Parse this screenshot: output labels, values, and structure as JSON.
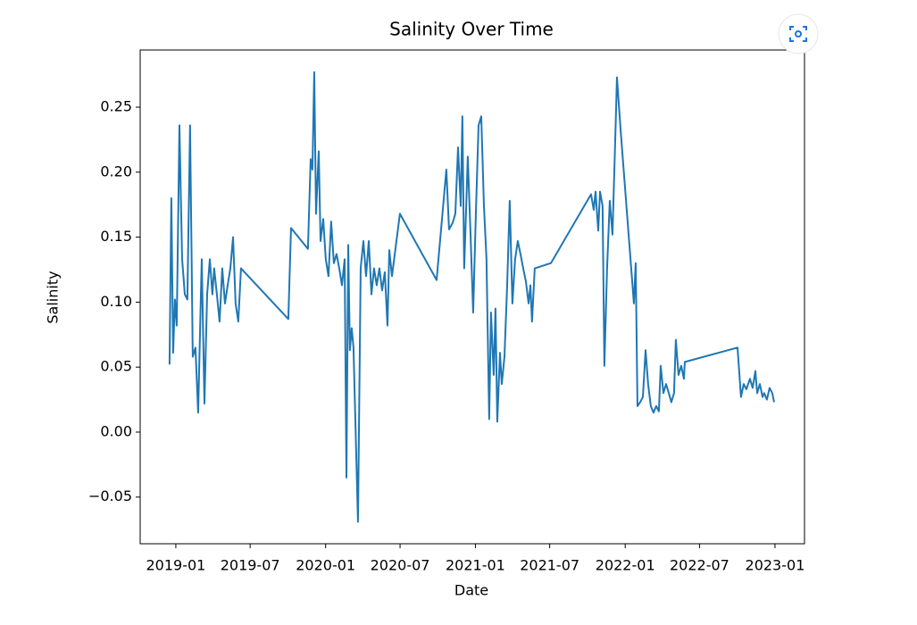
{
  "chart_data": {
    "type": "line",
    "title": "Salinity Over Time",
    "x_label": "Date",
    "y_label": "Salinity",
    "color": "#1f77b4",
    "grid": false,
    "x": [
      2018.958,
      2018.97,
      2018.982,
      2018.994,
      2019.006,
      2019.024,
      2019.042,
      2019.06,
      2019.077,
      2019.095,
      2019.113,
      2019.131,
      2019.149,
      2019.173,
      2019.191,
      2019.209,
      2019.227,
      2019.244,
      2019.256,
      2019.274,
      2019.292,
      2019.31,
      2019.328,
      2019.346,
      2019.364,
      2019.382,
      2019.399,
      2019.417,
      2019.435,
      2019.751,
      2019.769,
      2019.882,
      2019.9,
      2019.912,
      2019.924,
      2019.936,
      2019.954,
      2019.966,
      2019.984,
      2020.001,
      2020.019,
      2020.037,
      2020.055,
      2020.073,
      2020.091,
      2020.109,
      2020.127,
      2020.139,
      2020.151,
      2020.162,
      2020.174,
      2020.186,
      2020.216,
      2020.234,
      2020.252,
      2020.27,
      2020.288,
      2020.306,
      2020.323,
      2020.341,
      2020.359,
      2020.377,
      2020.395,
      2020.413,
      2020.425,
      2020.443,
      2020.496,
      2020.741,
      2020.806,
      2020.824,
      2020.848,
      2020.866,
      2020.884,
      2020.902,
      2020.913,
      2020.925,
      2020.937,
      2020.949,
      2020.967,
      2020.985,
      2021.003,
      2021.021,
      2021.039,
      2021.057,
      2021.074,
      2021.092,
      2021.104,
      2021.122,
      2021.134,
      2021.146,
      2021.164,
      2021.176,
      2021.194,
      2021.212,
      2021.229,
      2021.247,
      2021.265,
      2021.283,
      2021.301,
      2021.319,
      2021.337,
      2021.355,
      2021.367,
      2021.378,
      2021.396,
      2021.504,
      2021.772,
      2021.79,
      2021.802,
      2021.82,
      2021.832,
      2021.849,
      2021.861,
      2021.879,
      2021.897,
      2021.915,
      2021.933,
      2021.945,
      2021.969,
      2022.058,
      2022.07,
      2022.082,
      2022.1,
      2022.118,
      2022.136,
      2022.153,
      2022.171,
      2022.189,
      2022.207,
      2022.225,
      2022.237,
      2022.255,
      2022.273,
      2022.291,
      2022.308,
      2022.326,
      2022.338,
      2022.356,
      2022.374,
      2022.392,
      2022.398,
      2022.75,
      2022.773,
      2022.791,
      2022.809,
      2022.821,
      2022.833,
      2022.851,
      2022.869,
      2022.881,
      2022.899,
      2022.917,
      2022.928,
      2022.946,
      2022.964,
      2022.982,
      2022.994
    ],
    "values": [
      0.052,
      0.18,
      0.061,
      0.102,
      0.082,
      0.236,
      0.133,
      0.106,
      0.102,
      0.236,
      0.058,
      0.065,
      0.015,
      0.133,
      0.022,
      0.106,
      0.133,
      0.106,
      0.126,
      0.106,
      0.085,
      0.126,
      0.099,
      0.113,
      0.126,
      0.15,
      0.099,
      0.085,
      0.126,
      0.087,
      0.157,
      0.141,
      0.21,
      0.202,
      0.277,
      0.168,
      0.216,
      0.147,
      0.164,
      0.133,
      0.12,
      0.162,
      0.13,
      0.137,
      0.126,
      0.113,
      0.133,
      -0.035,
      0.144,
      0.063,
      0.08,
      0.065,
      -0.069,
      0.126,
      0.147,
      0.12,
      0.147,
      0.106,
      0.126,
      0.113,
      0.126,
      0.109,
      0.123,
      0.082,
      0.14,
      0.12,
      0.168,
      0.117,
      0.202,
      0.156,
      0.161,
      0.168,
      0.219,
      0.174,
      0.243,
      0.126,
      0.168,
      0.212,
      0.154,
      0.092,
      0.168,
      0.236,
      0.243,
      0.174,
      0.133,
      0.01,
      0.092,
      0.044,
      0.095,
      0.008,
      0.061,
      0.037,
      0.058,
      0.113,
      0.178,
      0.099,
      0.133,
      0.147,
      0.137,
      0.126,
      0.116,
      0.099,
      0.113,
      0.085,
      0.126,
      0.13,
      0.183,
      0.171,
      0.185,
      0.155,
      0.185,
      0.174,
      0.051,
      0.126,
      0.178,
      0.152,
      0.223,
      0.273,
      0.233,
      0.099,
      0.13,
      0.02,
      0.023,
      0.027,
      0.063,
      0.037,
      0.02,
      0.015,
      0.02,
      0.016,
      0.051,
      0.03,
      0.037,
      0.03,
      0.023,
      0.03,
      0.071,
      0.044,
      0.051,
      0.041,
      0.054,
      0.065,
      0.027,
      0.037,
      0.033,
      0.037,
      0.041,
      0.034,
      0.047,
      0.03,
      0.037,
      0.027,
      0.03,
      0.025,
      0.034,
      0.03,
      0.023
    ],
    "xlim": [
      2018.762,
      2023.197
    ],
    "xticks": [
      {
        "value": 2019.0,
        "label": "2019-01"
      },
      {
        "value": 2019.496,
        "label": "2019-07"
      },
      {
        "value": 2020.0,
        "label": "2020-01"
      },
      {
        "value": 2020.497,
        "label": "2020-07"
      },
      {
        "value": 2021.0,
        "label": "2021-01"
      },
      {
        "value": 2021.496,
        "label": "2021-07"
      },
      {
        "value": 2022.0,
        "label": "2022-01"
      },
      {
        "value": 2022.496,
        "label": "2022-07"
      },
      {
        "value": 2023.0,
        "label": "2023-01"
      }
    ],
    "ylim": [
      -0.0859,
      0.294
    ],
    "yticks": [
      {
        "value": -0.05,
        "label": "−0.05"
      },
      {
        "value": 0,
        "label": "0.00"
      },
      0.05,
      {
        "value": 0.1,
        "label": "0.10"
      },
      0.15,
      {
        "value": 0.2,
        "label": "0.20"
      },
      0.25
    ]
  }
}
